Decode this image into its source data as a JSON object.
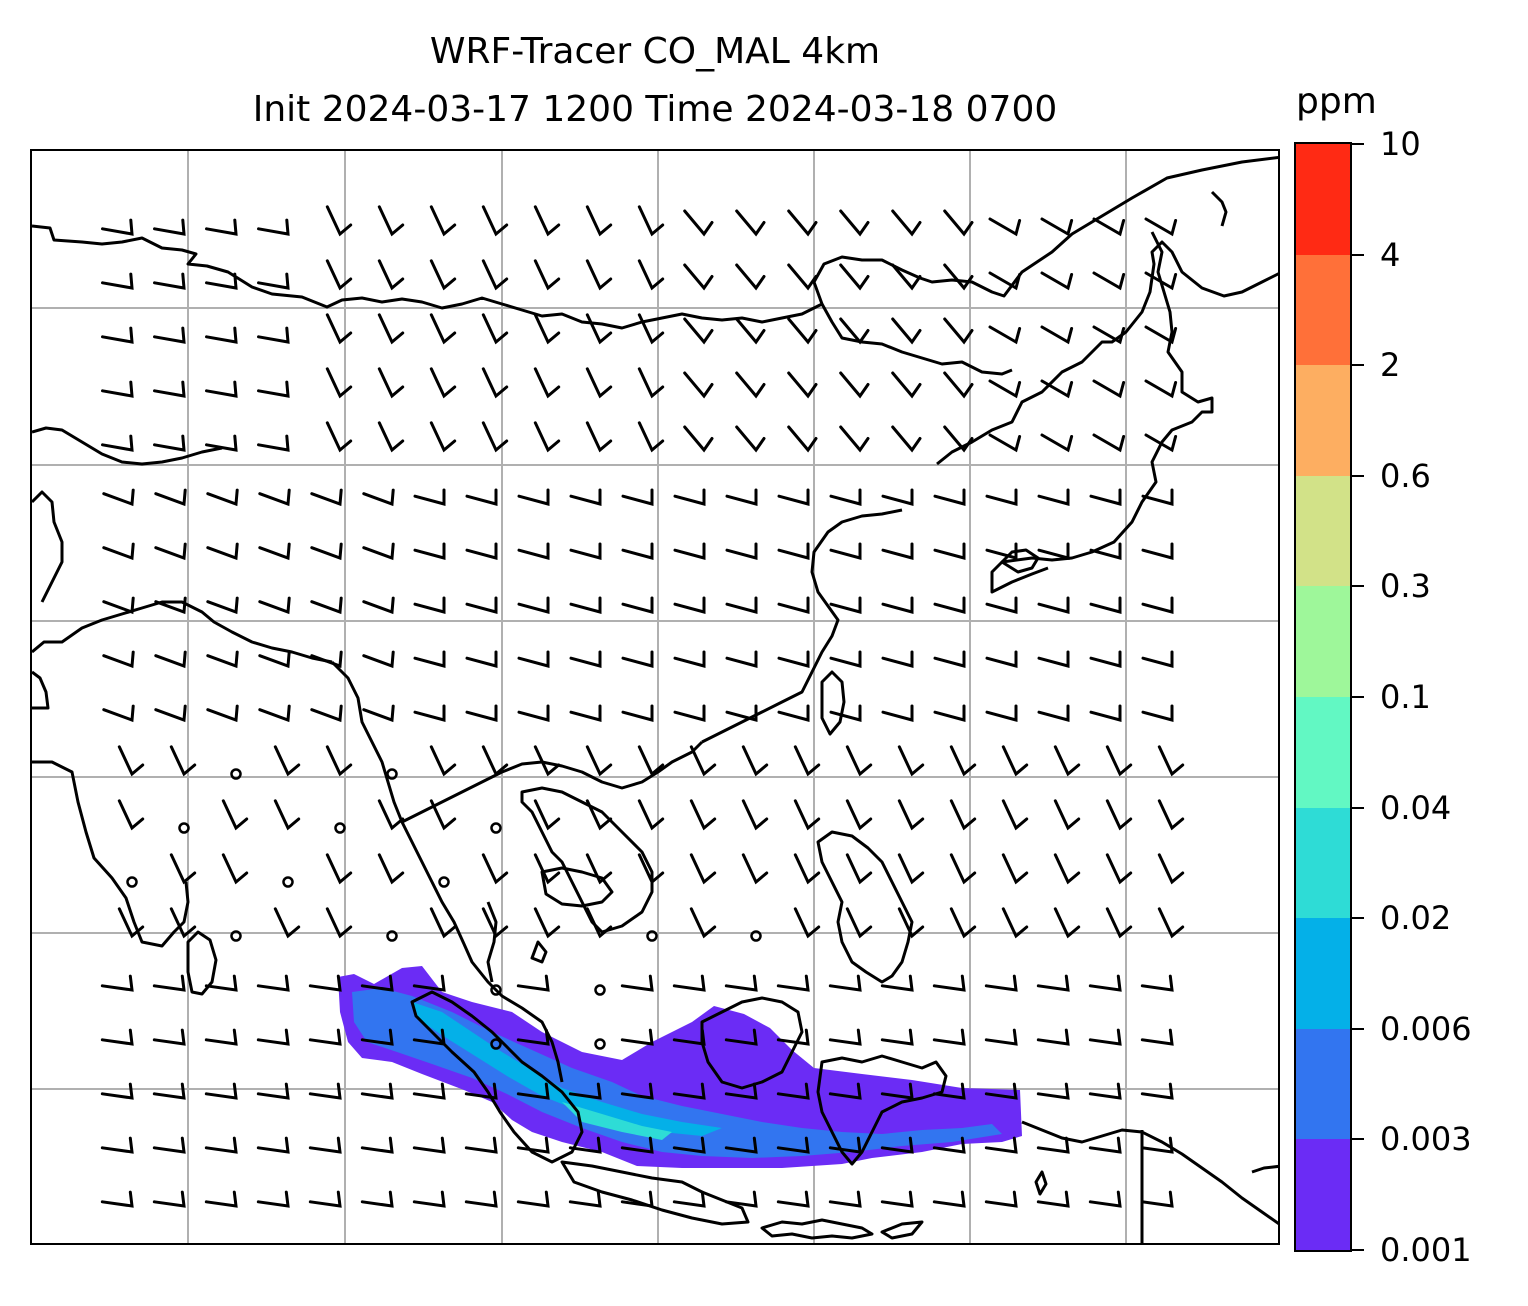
{
  "title": {
    "line1": "WRF-Tracer CO_MAL 4km",
    "line2": "Init 2024-03-17 1200 Time 2024-03-18 0700"
  },
  "colorbar": {
    "unit": "ppm",
    "levels": [
      "0.001",
      "0.003",
      "0.006",
      "0.02",
      "0.04",
      "0.1",
      "0.3",
      "0.6",
      "2",
      "4",
      "10"
    ],
    "colors": [
      "#6b2cf5",
      "#3275f0",
      "#04b0e8",
      "#2edcd6",
      "#62f8c3",
      "#9ef79a",
      "#d2e288",
      "#fdae61",
      "#ff7039",
      "#ff2a14"
    ]
  },
  "map": {
    "gridlines": true,
    "grid_color": "#b0b0b0",
    "coastline_color": "#000000",
    "wind_barb_color": "#000000",
    "plume_levels_present": [
      "0.001",
      "0.003",
      "0.006",
      "0.02"
    ]
  }
}
